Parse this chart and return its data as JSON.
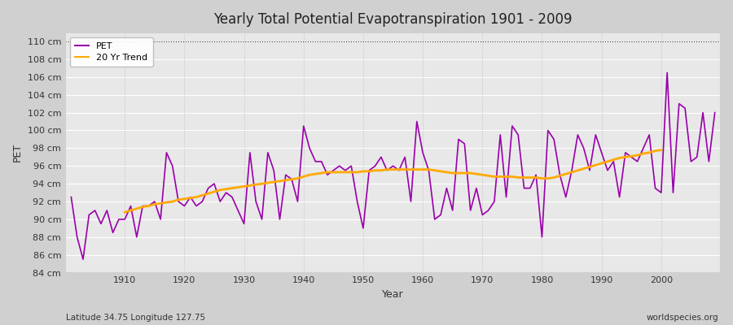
{
  "title": "Yearly Total Potential Evapotranspiration 1901 - 2009",
  "xlabel": "Year",
  "ylabel": "PET",
  "footnote_left": "Latitude 34.75 Longitude 127.75",
  "footnote_right": "worldspecies.org",
  "ylim": [
    84,
    111
  ],
  "yticks": [
    84,
    86,
    88,
    90,
    92,
    94,
    96,
    98,
    100,
    102,
    104,
    106,
    108,
    110
  ],
  "xlim": [
    1900,
    2010
  ],
  "xticks": [
    1910,
    1920,
    1930,
    1940,
    1950,
    1960,
    1970,
    1980,
    1990,
    2000
  ],
  "fig_bg_color": "#d0d0d0",
  "plot_bg_color": "#e8e8e8",
  "grid_color": "#ffffff",
  "vgrid_color": "#cccccc",
  "pet_color": "#9900aa",
  "trend_color": "#ffaa00",
  "years": [
    1901,
    1902,
    1903,
    1904,
    1905,
    1906,
    1907,
    1908,
    1909,
    1910,
    1911,
    1912,
    1913,
    1914,
    1915,
    1916,
    1917,
    1918,
    1919,
    1920,
    1921,
    1922,
    1923,
    1924,
    1925,
    1926,
    1927,
    1928,
    1929,
    1930,
    1931,
    1932,
    1933,
    1934,
    1935,
    1936,
    1937,
    1938,
    1939,
    1940,
    1941,
    1942,
    1943,
    1944,
    1945,
    1946,
    1947,
    1948,
    1949,
    1950,
    1951,
    1952,
    1953,
    1954,
    1955,
    1956,
    1957,
    1958,
    1959,
    1960,
    1961,
    1962,
    1963,
    1964,
    1965,
    1966,
    1967,
    1968,
    1969,
    1970,
    1971,
    1972,
    1973,
    1974,
    1975,
    1976,
    1977,
    1978,
    1979,
    1980,
    1981,
    1982,
    1983,
    1984,
    1985,
    1986,
    1987,
    1988,
    1989,
    1990,
    1991,
    1992,
    1993,
    1994,
    1995,
    1996,
    1997,
    1998,
    1999,
    2000,
    2001,
    2002,
    2003,
    2004,
    2005,
    2006,
    2007,
    2008,
    2009
  ],
  "pet_values": [
    92.5,
    88.0,
    85.5,
    90.5,
    91.0,
    89.5,
    91.0,
    88.5,
    90.0,
    90.0,
    91.5,
    88.0,
    91.5,
    91.5,
    92.0,
    90.0,
    97.5,
    96.0,
    92.0,
    91.5,
    92.5,
    91.5,
    92.0,
    93.5,
    94.0,
    92.0,
    93.0,
    92.5,
    91.0,
    89.5,
    97.5,
    92.0,
    90.0,
    97.5,
    95.5,
    90.0,
    95.0,
    94.5,
    92.0,
    100.5,
    98.0,
    96.5,
    96.5,
    95.0,
    95.5,
    96.0,
    95.5,
    96.0,
    92.0,
    89.0,
    95.5,
    96.0,
    97.0,
    95.5,
    96.0,
    95.5,
    97.0,
    92.0,
    101.0,
    97.5,
    95.5,
    90.0,
    90.5,
    93.5,
    91.0,
    99.0,
    98.5,
    91.0,
    93.5,
    90.5,
    91.0,
    92.0,
    99.5,
    92.5,
    100.5,
    99.5,
    93.5,
    93.5,
    95.0,
    88.0,
    100.0,
    99.0,
    95.0,
    92.5,
    95.5,
    99.5,
    98.0,
    95.5,
    99.5,
    97.5,
    95.5,
    96.5,
    92.5,
    97.5,
    97.0,
    96.5,
    98.0,
    99.5,
    93.5,
    93.0,
    106.5,
    93.0,
    103.0,
    102.5,
    96.5,
    97.0,
    102.0,
    96.5,
    102.0
  ],
  "trend_values": [
    null,
    null,
    null,
    null,
    null,
    null,
    null,
    null,
    null,
    90.8,
    91.0,
    91.2,
    91.4,
    91.5,
    91.7,
    91.8,
    91.9,
    92.0,
    92.2,
    92.3,
    92.4,
    92.5,
    92.7,
    92.9,
    93.1,
    93.3,
    93.4,
    93.5,
    93.6,
    93.7,
    93.8,
    93.9,
    94.0,
    94.1,
    94.2,
    94.3,
    94.4,
    94.5,
    94.6,
    94.8,
    95.0,
    95.1,
    95.2,
    95.3,
    95.3,
    95.3,
    95.3,
    95.3,
    95.3,
    95.4,
    95.4,
    95.5,
    95.5,
    95.6,
    95.6,
    95.6,
    95.6,
    95.6,
    95.6,
    95.6,
    95.6,
    95.5,
    95.4,
    95.3,
    95.2,
    95.2,
    95.2,
    95.2,
    95.1,
    95.0,
    94.9,
    94.8,
    94.8,
    94.8,
    94.8,
    94.7,
    94.7,
    94.7,
    94.7,
    94.6,
    94.6,
    94.7,
    94.9,
    95.1,
    95.3,
    95.5,
    95.7,
    95.9,
    96.1,
    96.3,
    96.5,
    96.7,
    96.9,
    97.0,
    97.1,
    97.2,
    97.4,
    97.5,
    97.7,
    97.8,
    null,
    null,
    null,
    null,
    null,
    null,
    null,
    null,
    null
  ]
}
